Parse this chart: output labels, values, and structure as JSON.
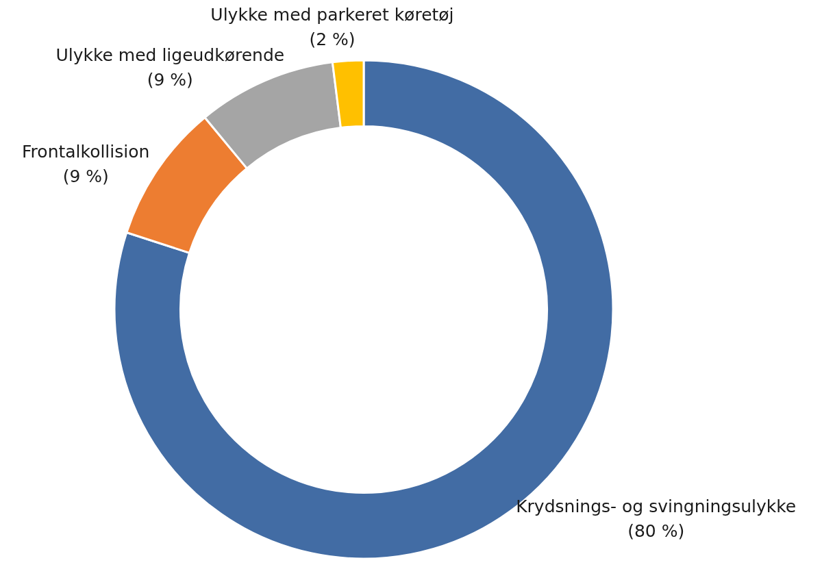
{
  "chart_data": {
    "type": "donut",
    "categories": [
      "Krydsnings- og svingningsulykke",
      "Frontalkollision",
      "Ulykke med ligeudkørende",
      "Ulykke med parkeret køretøj"
    ],
    "values": [
      80,
      9,
      9,
      2
    ],
    "value_labels": [
      "(80 %)",
      "(9 %)",
      "(9 %)",
      "(2 %)"
    ],
    "colors": [
      "#426ca4",
      "#ed7d31",
      "#a5a5a5",
      "#ffc000"
    ]
  }
}
